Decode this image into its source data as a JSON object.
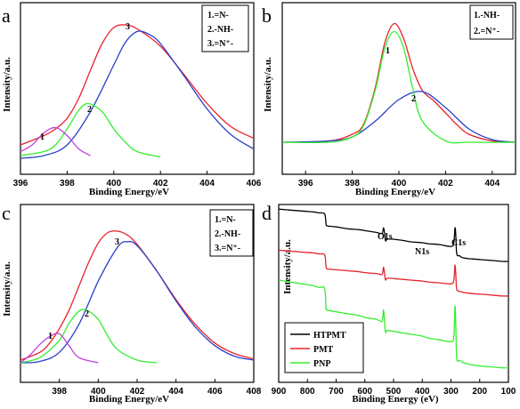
{
  "colors": {
    "red": "#e8222b",
    "blue": "#2a3fc9",
    "green": "#33ee2e",
    "magenta": "#c040e0",
    "black": "#000000"
  },
  "chart_data": [
    {
      "type": "line",
      "panel": "a",
      "xlabel": "Binding Energy/eV",
      "ylabel": "Intensity/a.u.",
      "xlim": [
        396,
        406
      ],
      "xticks": [
        "396",
        "398",
        "400",
        "402",
        "404",
        "406"
      ],
      "legend": [
        "1.=N-",
        "2.-NH-",
        "3.=N⁺-"
      ],
      "peak_labels": [
        "1",
        "2",
        "3"
      ],
      "series": [
        {
          "color": "#e8222b",
          "x": [
            396,
            397,
            397.5,
            398,
            398.5,
            399,
            399.5,
            400,
            400.5,
            401,
            402,
            403,
            404,
            405,
            406
          ],
          "y": [
            0.1,
            0.17,
            0.22,
            0.3,
            0.45,
            0.66,
            0.86,
            0.98,
            1.0,
            0.97,
            0.84,
            0.63,
            0.41,
            0.24,
            0.15
          ]
        },
        {
          "color": "#2a3fc9",
          "x": [
            396,
            397,
            398,
            399,
            400,
            400.5,
            401,
            401.5,
            402,
            403,
            404,
            405,
            406
          ],
          "y": [
            0.0,
            0.02,
            0.1,
            0.35,
            0.7,
            0.87,
            0.95,
            0.93,
            0.86,
            0.62,
            0.37,
            0.18,
            0.07
          ]
        },
        {
          "color": "#33ee2e",
          "x": [
            396,
            397,
            397.5,
            398,
            398.5,
            398.9,
            399.5,
            400,
            400.5,
            401,
            402
          ],
          "y": [
            0.02,
            0.05,
            0.1,
            0.22,
            0.36,
            0.41,
            0.35,
            0.22,
            0.12,
            0.05,
            0.01
          ]
        },
        {
          "color": "#c040e0",
          "x": [
            396,
            396.5,
            397,
            397.5,
            398,
            398.5,
            399
          ],
          "y": [
            0.05,
            0.1,
            0.19,
            0.23,
            0.17,
            0.07,
            0.02
          ]
        }
      ]
    },
    {
      "type": "line",
      "panel": "b",
      "xlabel": "Binding Energy/eV",
      "ylabel": "Intensity/a.u.",
      "xlim": [
        395,
        405
      ],
      "xticks": [
        "396",
        "398",
        "400",
        "402",
        "404"
      ],
      "legend": [
        "1.-NH-",
        "2.=N⁺-"
      ],
      "peak_labels": [
        "1",
        "2"
      ],
      "series": [
        {
          "color": "#e8222b",
          "x": [
            395,
            397,
            398,
            398.5,
            399,
            399.4,
            399.8,
            400.2,
            400.6,
            401,
            401.5,
            402,
            402.5,
            403,
            404,
            405
          ],
          "y": [
            0.0,
            0.01,
            0.06,
            0.14,
            0.42,
            0.75,
            0.89,
            0.78,
            0.55,
            0.39,
            0.31,
            0.22,
            0.13,
            0.06,
            0.01,
            0.0
          ]
        },
        {
          "color": "#2a3fc9",
          "x": [
            395,
            397,
            398,
            399,
            400,
            401,
            402,
            403,
            404,
            405
          ],
          "y": [
            0.0,
            0.01,
            0.04,
            0.16,
            0.32,
            0.38,
            0.26,
            0.1,
            0.02,
            0.0
          ]
        },
        {
          "color": "#33ee2e",
          "x": [
            395,
            397,
            398,
            398.5,
            399,
            399.4,
            399.8,
            400.2,
            400.6,
            401,
            402,
            403,
            405
          ],
          "y": [
            0.0,
            0.0,
            0.04,
            0.13,
            0.4,
            0.71,
            0.83,
            0.71,
            0.4,
            0.16,
            0.01,
            0.0,
            0.0
          ]
        }
      ]
    },
    {
      "type": "line",
      "panel": "c",
      "xlabel": "Binding Energy/eV",
      "ylabel": "Intensity/a.u.",
      "xlim": [
        396,
        408
      ],
      "xticks": [
        "398",
        "400",
        "402",
        "404",
        "406",
        "408"
      ],
      "legend": [
        "1.=N-",
        "2.-NH-",
        "3.=N⁺-"
      ],
      "peak_labels": [
        "1",
        "2",
        "3"
      ],
      "series": [
        {
          "color": "#e8222b",
          "x": [
            396,
            397,
            397.5,
            398,
            398.5,
            399,
            399.5,
            400,
            400.5,
            401,
            401.5,
            402,
            403,
            404,
            405,
            406,
            407,
            408
          ],
          "y": [
            0.02,
            0.08,
            0.15,
            0.26,
            0.4,
            0.58,
            0.76,
            0.91,
            0.99,
            1.0,
            0.97,
            0.9,
            0.7,
            0.48,
            0.29,
            0.15,
            0.07,
            0.03
          ]
        },
        {
          "color": "#2a3fc9",
          "x": [
            396,
            397,
            398,
            399,
            400,
            401,
            401.5,
            402,
            403,
            404,
            405,
            406,
            407,
            408
          ],
          "y": [
            0.0,
            0.01,
            0.08,
            0.29,
            0.62,
            0.88,
            0.92,
            0.89,
            0.7,
            0.47,
            0.27,
            0.13,
            0.05,
            0.02
          ]
        },
        {
          "color": "#33ee2e",
          "x": [
            396,
            397,
            398,
            398.5,
            399,
            399.4,
            400,
            400.5,
            401,
            402,
            403
          ],
          "y": [
            0.0,
            0.04,
            0.17,
            0.3,
            0.39,
            0.4,
            0.33,
            0.2,
            0.1,
            0.02,
            0.0
          ]
        },
        {
          "color": "#c040e0",
          "x": [
            396,
            396.5,
            397,
            397.5,
            398,
            398.5,
            399,
            400
          ],
          "y": [
            0.0,
            0.06,
            0.14,
            0.2,
            0.22,
            0.13,
            0.04,
            0.0
          ]
        }
      ]
    },
    {
      "type": "line",
      "panel": "d",
      "xlabel": "Binding Energy (eV)",
      "ylabel": "Intensity/a.u.",
      "xlim": [
        900,
        100
      ],
      "xticks": [
        "900",
        "800",
        "700",
        "600",
        "500",
        "400",
        "300",
        "200",
        "100"
      ],
      "annotations": [
        "O1s",
        "N1s",
        "C1s"
      ],
      "legend": [
        "HTPMT",
        "PMT",
        "PNP"
      ],
      "series": [
        {
          "name": "HTPMT",
          "color": "#000000",
          "x": [
            900,
            860,
            820,
            780,
            760,
            740,
            735,
            730,
            700,
            660,
            620,
            600,
            560,
            540,
            535,
            531,
            528,
            520,
            480,
            440,
            400,
            380,
            340,
            300,
            290,
            286,
            283,
            280,
            270,
            260,
            240,
            200,
            160,
            120,
            100
          ],
          "y": [
            0.88,
            0.875,
            0.87,
            0.865,
            0.86,
            0.855,
            0.8,
            0.79,
            0.785,
            0.775,
            0.77,
            0.765,
            0.755,
            0.75,
            0.78,
            0.75,
            0.71,
            0.72,
            0.715,
            0.705,
            0.7,
            0.695,
            0.69,
            0.68,
            0.7,
            0.78,
            0.73,
            0.64,
            0.63,
            0.62,
            0.615,
            0.61,
            0.605,
            0.6,
            0.6
          ]
        },
        {
          "name": "PMT",
          "color": "#e8222b",
          "x": [
            900,
            860,
            820,
            780,
            760,
            740,
            735,
            730,
            700,
            660,
            620,
            600,
            560,
            540,
            535,
            531,
            528,
            520,
            480,
            440,
            400,
            380,
            340,
            300,
            290,
            286,
            283,
            280,
            270,
            260,
            240,
            200,
            160,
            120,
            100
          ],
          "y": [
            0.66,
            0.655,
            0.65,
            0.645,
            0.64,
            0.635,
            0.57,
            0.56,
            0.555,
            0.55,
            0.545,
            0.54,
            0.535,
            0.53,
            0.57,
            0.53,
            0.5,
            0.51,
            0.505,
            0.5,
            0.495,
            0.49,
            0.485,
            0.48,
            0.5,
            0.58,
            0.52,
            0.45,
            0.44,
            0.435,
            0.43,
            0.425,
            0.42,
            0.415,
            0.415
          ]
        },
        {
          "name": "PNP",
          "color": "#33ee2e",
          "x": [
            900,
            860,
            820,
            780,
            760,
            740,
            735,
            730,
            700,
            660,
            620,
            600,
            560,
            540,
            535,
            531,
            528,
            520,
            480,
            440,
            400,
            380,
            340,
            300,
            290,
            286,
            283,
            280,
            270,
            260,
            240,
            200,
            160,
            120,
            100
          ],
          "y": [
            0.5,
            0.49,
            0.48,
            0.47,
            0.46,
            0.455,
            0.35,
            0.34,
            0.33,
            0.32,
            0.31,
            0.3,
            0.29,
            0.28,
            0.34,
            0.27,
            0.22,
            0.23,
            0.22,
            0.21,
            0.2,
            0.19,
            0.18,
            0.17,
            0.2,
            0.36,
            0.24,
            0.08,
            0.07,
            0.06,
            0.05,
            0.04,
            0.035,
            0.03,
            0.03
          ]
        }
      ]
    }
  ]
}
